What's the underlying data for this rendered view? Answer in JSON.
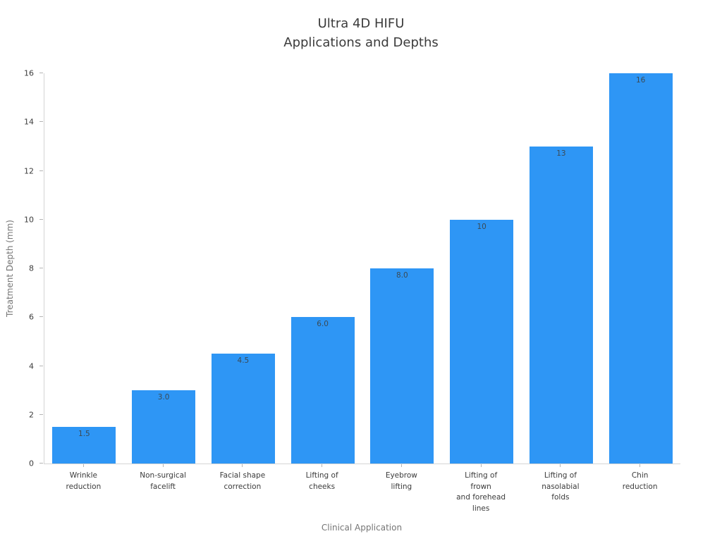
{
  "chart_data": {
    "type": "bar",
    "title": "Ultra 4D HIFU\nApplications and Depths",
    "xlabel": "Clinical Application",
    "ylabel": "Treatment Depth (mm)",
    "ylim": [
      0,
      16
    ],
    "ytick_step": 2,
    "grid": false,
    "legend": "none",
    "bar_color": "#2e96f5",
    "categories": [
      "Wrinkle\nreduction",
      "Non-surgical\nfacelift",
      "Facial shape\ncorrection",
      "Lifting of\ncheeks",
      "Eyebrow\nlifting",
      "Lifting of\nfrown\nand forehead\nlines",
      "Lifting of\nnasolabial\nfolds",
      "Chin\nreduction"
    ],
    "values": [
      1.5,
      3.0,
      4.5,
      6.0,
      8.0,
      10,
      13,
      16
    ],
    "value_labels": [
      "1.5",
      "3.0",
      "4.5",
      "6.0",
      "8.0",
      "10",
      "13",
      "16"
    ]
  }
}
